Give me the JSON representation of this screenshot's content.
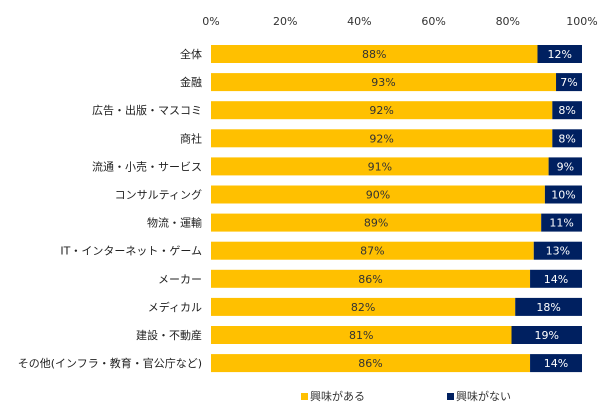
{
  "chart_data": {
    "type": "bar",
    "orientation": "horizontal",
    "stacked": true,
    "title": "",
    "xlabel": "",
    "ylabel": "",
    "xlim": [
      0,
      100
    ],
    "x_ticks": [
      "0%",
      "20%",
      "40%",
      "60%",
      "80%",
      "100%"
    ],
    "x_tick_values": [
      0,
      20,
      40,
      60,
      80,
      100
    ],
    "x_axis_position": "top",
    "grid": false,
    "categories": [
      "全体",
      "金融",
      "広告・出版・マスコミ",
      "商社",
      "流通・小売・サービス",
      "コンサルティング",
      "物流・運輸",
      "IT・インターネット・ゲーム",
      "メーカー",
      "メディカル",
      "建設・不動産",
      "その他(インフラ・教育・官公庁など)"
    ],
    "series": [
      {
        "name": "興味がある",
        "color": "#FFC000",
        "values": [
          88,
          93,
          92,
          92,
          91,
          90,
          89,
          87,
          86,
          82,
          81,
          86
        ]
      },
      {
        "name": "興味がない",
        "color": "#002060",
        "values": [
          12,
          7,
          8,
          8,
          9,
          10,
          11,
          13,
          14,
          18,
          19,
          14
        ]
      }
    ],
    "value_suffix": "%",
    "legend": {
      "placement": "bottom"
    }
  }
}
